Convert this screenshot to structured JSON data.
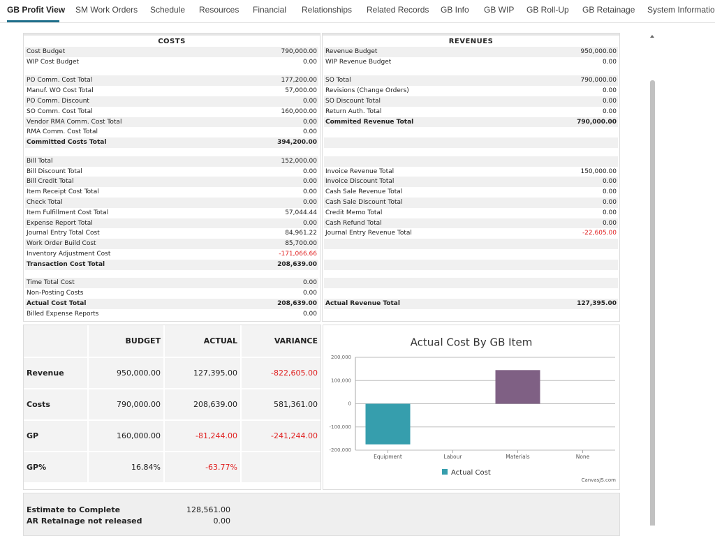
{
  "tabs": [
    "GB Profit View",
    "SM Work Orders",
    "Schedule",
    "Resources",
    "Financial",
    "Relationships",
    "Related Records",
    "GB Info",
    "GB WIP",
    "GB Roll-Up",
    "GB Retainage",
    "System Information"
  ],
  "costs": {
    "title": "COSTS",
    "sections": [
      [
        {
          "label": "Cost Budget",
          "value": "790,000.00"
        },
        {
          "label": "WIP Cost Budget",
          "value": "0.00"
        }
      ],
      [
        {
          "label": "PO Comm. Cost Total",
          "value": "177,200.00"
        },
        {
          "label": "Manuf. WO Cost Total",
          "value": "57,000.00"
        },
        {
          "label": "PO Comm. Discount",
          "value": "0.00"
        },
        {
          "label": "SO Comm. Cost Total",
          "value": "160,000.00"
        },
        {
          "label": "Vendor RMA Comm. Cost Total",
          "value": "0.00"
        },
        {
          "label": "RMA Comm. Cost Total",
          "value": "0.00"
        },
        {
          "label": "Committed Costs Total",
          "value": "394,200.00",
          "bold": true
        }
      ],
      [
        {
          "label": "Bill Total",
          "value": "152,000.00"
        },
        {
          "label": "Bill Discount Total",
          "value": "0.00"
        },
        {
          "label": "Bill Credit Total",
          "value": "0.00"
        },
        {
          "label": "Item Receipt Cost Total",
          "value": "0.00"
        },
        {
          "label": "Check Total",
          "value": "0.00"
        },
        {
          "label": "Item Fulfillment Cost Total",
          "value": "57,044.44"
        },
        {
          "label": "Expense Report Total",
          "value": "0.00"
        },
        {
          "label": "Journal Entry Total Cost",
          "value": "84,961.22"
        },
        {
          "label": "Work Order Build Cost",
          "value": "85,700.00"
        },
        {
          "label": "Inventory Adjustment Cost",
          "value": "-171,066.66"
        },
        {
          "label": "Transaction Cost Total",
          "value": "208,639.00",
          "bold": true
        }
      ],
      [
        {
          "label": "Time Total Cost",
          "value": "0.00"
        },
        {
          "label": "Non-Posting Costs",
          "value": "0.00"
        },
        {
          "label": "Actual Cost Total",
          "value": "208,639.00",
          "bold": true
        },
        {
          "label": "Billed Expense Reports",
          "value": "0.00"
        }
      ]
    ]
  },
  "revenues": {
    "title": "REVENUES",
    "sections": [
      [
        {
          "label": "Revenue Budget",
          "value": "950,000.00"
        },
        {
          "label": "WIP Revenue Budget",
          "value": "0.00"
        }
      ],
      [
        {
          "label": "SO Total",
          "value": "790,000.00"
        },
        {
          "label": "Revisions (Change Orders)",
          "value": "0.00"
        },
        {
          "label": "SO Discount Total",
          "value": "0.00"
        },
        {
          "label": "Return Auth. Total",
          "value": "0.00"
        },
        {
          "label": "Commited Revenue Total",
          "value": "790,000.00",
          "bold": true
        },
        null,
        null
      ],
      [
        null,
        {
          "label": "Invoice Revenue Total",
          "value": "150,000.00"
        },
        {
          "label": "Invoice Discount Total",
          "value": "0.00"
        },
        {
          "label": "Cash Sale Revenue Total",
          "value": "0.00"
        },
        {
          "label": "Cash Sale Discount Total",
          "value": "0.00"
        },
        {
          "label": "Credit Memo Total",
          "value": "0.00"
        },
        {
          "label": "Cash Refund Total",
          "value": "0.00"
        },
        {
          "label": "Journal Entry Revenue Total",
          "value": "-22,605.00"
        },
        null,
        null,
        null
      ],
      [
        null,
        null,
        {
          "label": "Actual Revenue Total",
          "value": "127,395.00",
          "bold": true
        },
        null
      ]
    ]
  },
  "summary": {
    "headers": [
      "BUDGET",
      "ACTUAL",
      "VARIANCE"
    ],
    "rows": [
      {
        "label": "Revenue",
        "values": [
          "950,000.00",
          "127,395.00",
          "-822,605.00"
        ]
      },
      {
        "label": "Costs",
        "values": [
          "790,000.00",
          "208,639.00",
          "581,361.00"
        ]
      },
      {
        "label": "GP",
        "values": [
          "160,000.00",
          "-81,244.00",
          "-241,244.00"
        ]
      },
      {
        "label": "GP%",
        "values": [
          "16.84%",
          "-63.77%"
        ]
      }
    ]
  },
  "chart_data": {
    "type": "bar",
    "title": "Actual Cost By GB Item",
    "categories": [
      "Equipment",
      "Labour",
      "Materials",
      "None"
    ],
    "series": [
      {
        "name": "Actual Cost",
        "color": "#369ead",
        "point_colors": [
          "#369ead",
          "#c24642",
          "#7f6084",
          "#86b402"
        ],
        "values": [
          -175000,
          0,
          145000,
          0
        ]
      }
    ],
    "ylim": [
      -200000,
      200000
    ],
    "yticks": [
      {
        "value": -200000,
        "label": "-200,000"
      },
      {
        "value": -100000,
        "label": "-100,000"
      },
      0,
      {
        "value": 100000,
        "label": "100,000"
      },
      {
        "value": 200000,
        "label": "200,000"
      }
    ],
    "grid": true,
    "legend": "bottom",
    "credit": "CanvasJS.com"
  },
  "footer_rows": [
    {
      "label": "Estimate to Complete",
      "value": "128,561.00"
    },
    {
      "label": "AR Retainage not released",
      "value": "0.00"
    }
  ]
}
